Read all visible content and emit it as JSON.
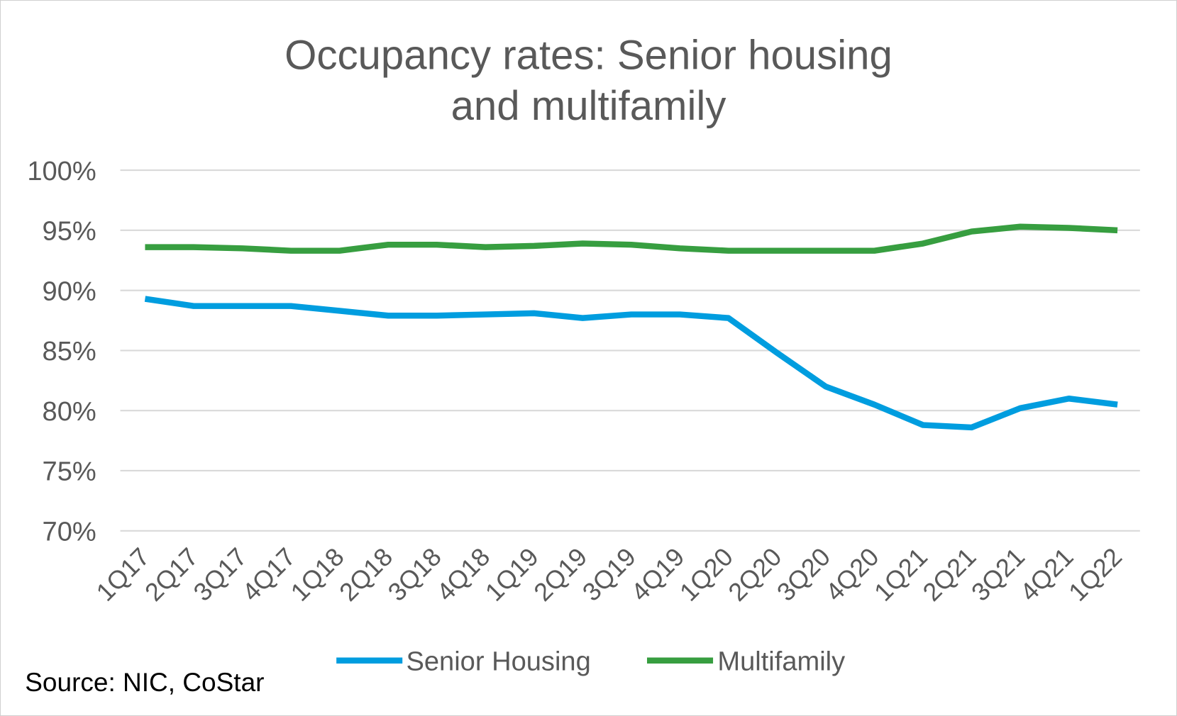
{
  "chart_data": {
    "type": "line",
    "title_lines": [
      "Occupancy rates: Senior housing",
      "and multifamily"
    ],
    "xlabel": "",
    "ylabel": "",
    "categories": [
      "1Q17",
      "2Q17",
      "3Q17",
      "4Q17",
      "1Q18",
      "2Q18",
      "3Q18",
      "4Q18",
      "1Q19",
      "2Q19",
      "3Q19",
      "4Q19",
      "1Q20",
      "2Q20",
      "3Q20",
      "4Q20",
      "1Q21",
      "2Q21",
      "3Q21",
      "4Q21",
      "1Q22"
    ],
    "ylim": [
      70,
      100
    ],
    "yticks": [
      70,
      75,
      80,
      85,
      90,
      95,
      100
    ],
    "ytick_labels": [
      "70%",
      "75%",
      "80%",
      "85%",
      "90%",
      "95%",
      "100%"
    ],
    "grid": true,
    "legend_position": "bottom",
    "series": [
      {
        "name": "Senior Housing",
        "color": "#009ddf",
        "values": [
          89.3,
          88.7,
          88.7,
          88.7,
          88.3,
          87.9,
          87.9,
          88.0,
          88.1,
          87.7,
          88.0,
          88.0,
          87.7,
          84.8,
          82.0,
          80.5,
          78.8,
          78.6,
          80.2,
          81.0,
          80.5
        ]
      },
      {
        "name": "Multifamily",
        "color": "#379e40",
        "values": [
          93.6,
          93.6,
          93.5,
          93.3,
          93.3,
          93.8,
          93.8,
          93.6,
          93.7,
          93.9,
          93.8,
          93.5,
          93.3,
          93.3,
          93.3,
          93.3,
          93.9,
          94.9,
          95.3,
          95.2,
          95.0
        ]
      }
    ],
    "source": "Source: NIC, CoStar"
  }
}
